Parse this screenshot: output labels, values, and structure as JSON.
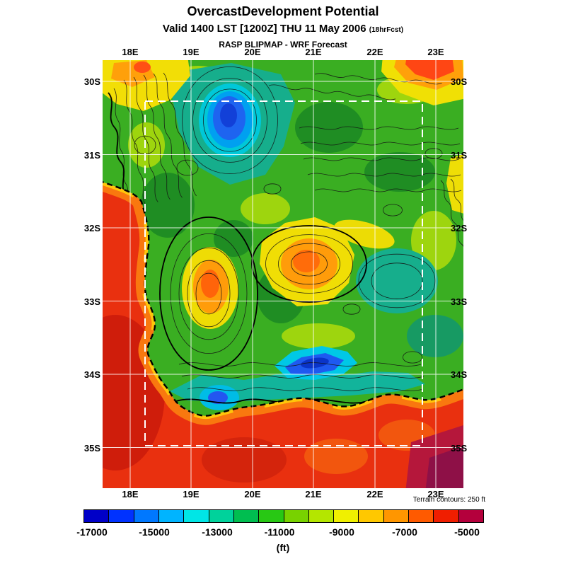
{
  "header": {
    "title": "OvercastDevelopment Potential",
    "valid_line": "Valid 1400 LST [1200Z] THU 11 May 2006",
    "forecast_hour": "(18hrFcst)",
    "model_line": "RASP BLIPMAP - WRF Forecast"
  },
  "map": {
    "lon_labels": [
      "18E",
      "19E",
      "20E",
      "21E",
      "22E",
      "23E"
    ],
    "lat_labels": [
      "30S",
      "31S",
      "32S",
      "33S",
      "34S",
      "35S"
    ]
  },
  "colorbar": {
    "units": "(ft)",
    "terrain_note": "Terrain contours: 250 ft",
    "tick_labels": [
      "-17000",
      "-15000",
      "-13000",
      "-11000",
      "-9000",
      "-7000",
      "-5000"
    ],
    "segment_colors": [
      "#0000c8",
      "#0032ff",
      "#0078ff",
      "#00b4ff",
      "#00e6e6",
      "#00d29b",
      "#00be50",
      "#28c814",
      "#78d200",
      "#b4e600",
      "#f0f000",
      "#ffc800",
      "#ff9600",
      "#ff5a00",
      "#f01e00",
      "#b4003c"
    ]
  }
}
